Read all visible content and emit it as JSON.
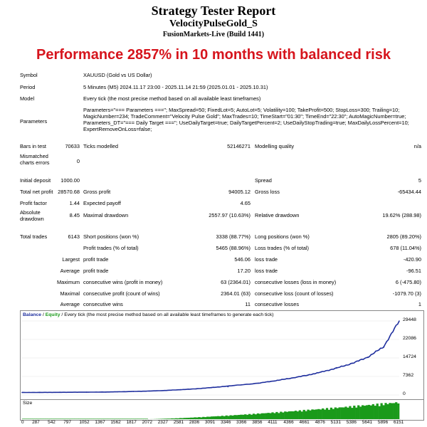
{
  "header": {
    "title": "Strategy Tester Report",
    "ea_name": "VelocityPulseGold_S",
    "server": "FusionMarkets-Live (Build 1441)",
    "banner": "Performance 2857% in 10 months with balanced risk"
  },
  "settings": {
    "symbol_label": "Symbol",
    "symbol_value": "XAUUSD (Gold vs US Dollar)",
    "period_label": "Period",
    "period_value": "5 Minutes (M5) 2024.11.17 23:00 - 2025.11.14 21:59 (2025.01.01 - 2025.10.31)",
    "model_label": "Model",
    "model_value": "Every tick (the most precise method based on all available least timeframes)",
    "params_label": "Parameters",
    "params_value": "Parameters=\"=== Parameters ===\"; MaxSpread=50; FixedLot=5; AutoLot=5; Volatility=100; TakeProfit=500; StopLoss=300; Trailing=10; MagicNumber=234; TradeComment=\"Velocity Pulse Gold\"; MaxTrades=10; TimeStart=\"01:30\"; TimeEnd=\"22:30\"; AutoMagicNumber=true; Parameters_DT=\"=== Daily Target ===\"; UseDailyTarget=true; DailyTargetPercent=2; UseDailyStopTrading=true; MaxDailyLossPercent=10; ExpertRemoveOnLoss=false;"
  },
  "stats": {
    "bars_label": "Bars in test",
    "bars_value": "70633",
    "ticks_label": "Ticks modelled",
    "ticks_value": "52146271",
    "quality_label": "Modelling quality",
    "quality_value": "n/a",
    "mismatch_label": "Mismatched charts errors",
    "mismatch_value": "0",
    "deposit_label": "Initial deposit",
    "deposit_value": "1000.00",
    "spread_label": "Spread",
    "spread_value": "5",
    "netprofit_label": "Total net profit",
    "netprofit_value": "28570.68",
    "grossprofit_label": "Gross profit",
    "grossprofit_value": "94005.12",
    "grossloss_label": "Gross loss",
    "grossloss_value": "-65434.44",
    "pf_label": "Profit factor",
    "pf_value": "1.44",
    "payoff_label": "Expected payoff",
    "payoff_value": "4.65",
    "absdd_label": "Absolute drawdown",
    "absdd_value": "8.45",
    "maxdd_label": "Maximal drawdown",
    "maxdd_value": "2557.97 (10.63%)",
    "reldd_label": "Relative drawdown",
    "reldd_value": "19.62% (288.98)",
    "trades_label": "Total trades",
    "trades_value": "6143",
    "short_label": "Short positions (won %)",
    "short_value": "3338 (88.77%)",
    "long_label": "Long positions (won %)",
    "long_value": "2805 (89.20%)",
    "ptrades_label": "Profit trades (% of total)",
    "ptrades_value": "5465 (88.96%)",
    "ltrades_label": "Loss trades (% of total)",
    "ltrades_value": "678 (11.04%)",
    "largest_label": "Largest",
    "lprofit_label": "profit trade",
    "lprofit_value": "546.06",
    "lloss_label": "loss trade",
    "lloss_value": "-420.90",
    "average_label": "Average",
    "aprofit_label": "profit trade",
    "aprofit_value": "17.20",
    "aloss_label": "loss trade",
    "aloss_value": "-96.51",
    "maximum_label": "Maximum",
    "mcw_label": "consecutive wins (profit in money)",
    "mcw_value": "63 (2364.01)",
    "mcl_label": "consecutive losses (loss in money)",
    "mcl_value": "6 (-475.80)",
    "maximal_label": "Maximal",
    "mcp_label": "consecutive profit (count of wins)",
    "mcp_value": "2364.01 (63)",
    "mclo_label": "consecutive loss (count of losses)",
    "mclo_value": "-1079.70 (3)",
    "average2_label": "Average",
    "acw_label": "consecutive wins",
    "acw_value": "11",
    "acl_label": "consecutive losses",
    "acl_value": "1"
  },
  "chart_legend": {
    "balance": "Balance",
    "sep1": " / ",
    "equity": "Equity",
    "rest": " / Every tick (the most precise method based on all available least timeframes to generate each tick)"
  },
  "size_label": "Size",
  "colors": {
    "balance": "#1f2f9e",
    "size": "#1a9a1a",
    "banner": "#d6141c"
  },
  "chart_data": {
    "type": "line",
    "title": "",
    "series": [
      {
        "name": "Balance",
        "x": [
          0,
          287,
          542,
          797,
          1052,
          1367,
          1562,
          1817,
          2072,
          2327,
          2581,
          2836,
          3091,
          3346,
          3366,
          3856,
          4111,
          4366,
          4661,
          4876,
          5131,
          5386,
          5641,
          5896,
          6151
        ],
        "values": [
          1000,
          1020,
          1050,
          1080,
          1120,
          1170,
          1260,
          1400,
          1560,
          1780,
          2100,
          2450,
          2950,
          3500,
          3550,
          4700,
          5600,
          6600,
          7900,
          9100,
          10700,
          12600,
          15100,
          19200,
          29448
        ]
      }
    ],
    "y_ticks": [
      "29448",
      "22086",
      "14724",
      "7362",
      "0"
    ],
    "ylim": [
      0,
      29448
    ],
    "x_ticks": [
      "0",
      "287",
      "542",
      "797",
      "1052",
      "1367",
      "1562",
      "1817",
      "2072",
      "2327",
      "2581",
      "2836",
      "3091",
      "3346",
      "3366",
      "3856",
      "4111",
      "4366",
      "4661",
      "4876",
      "5131",
      "5386",
      "5641",
      "5896",
      "6151"
    ]
  }
}
